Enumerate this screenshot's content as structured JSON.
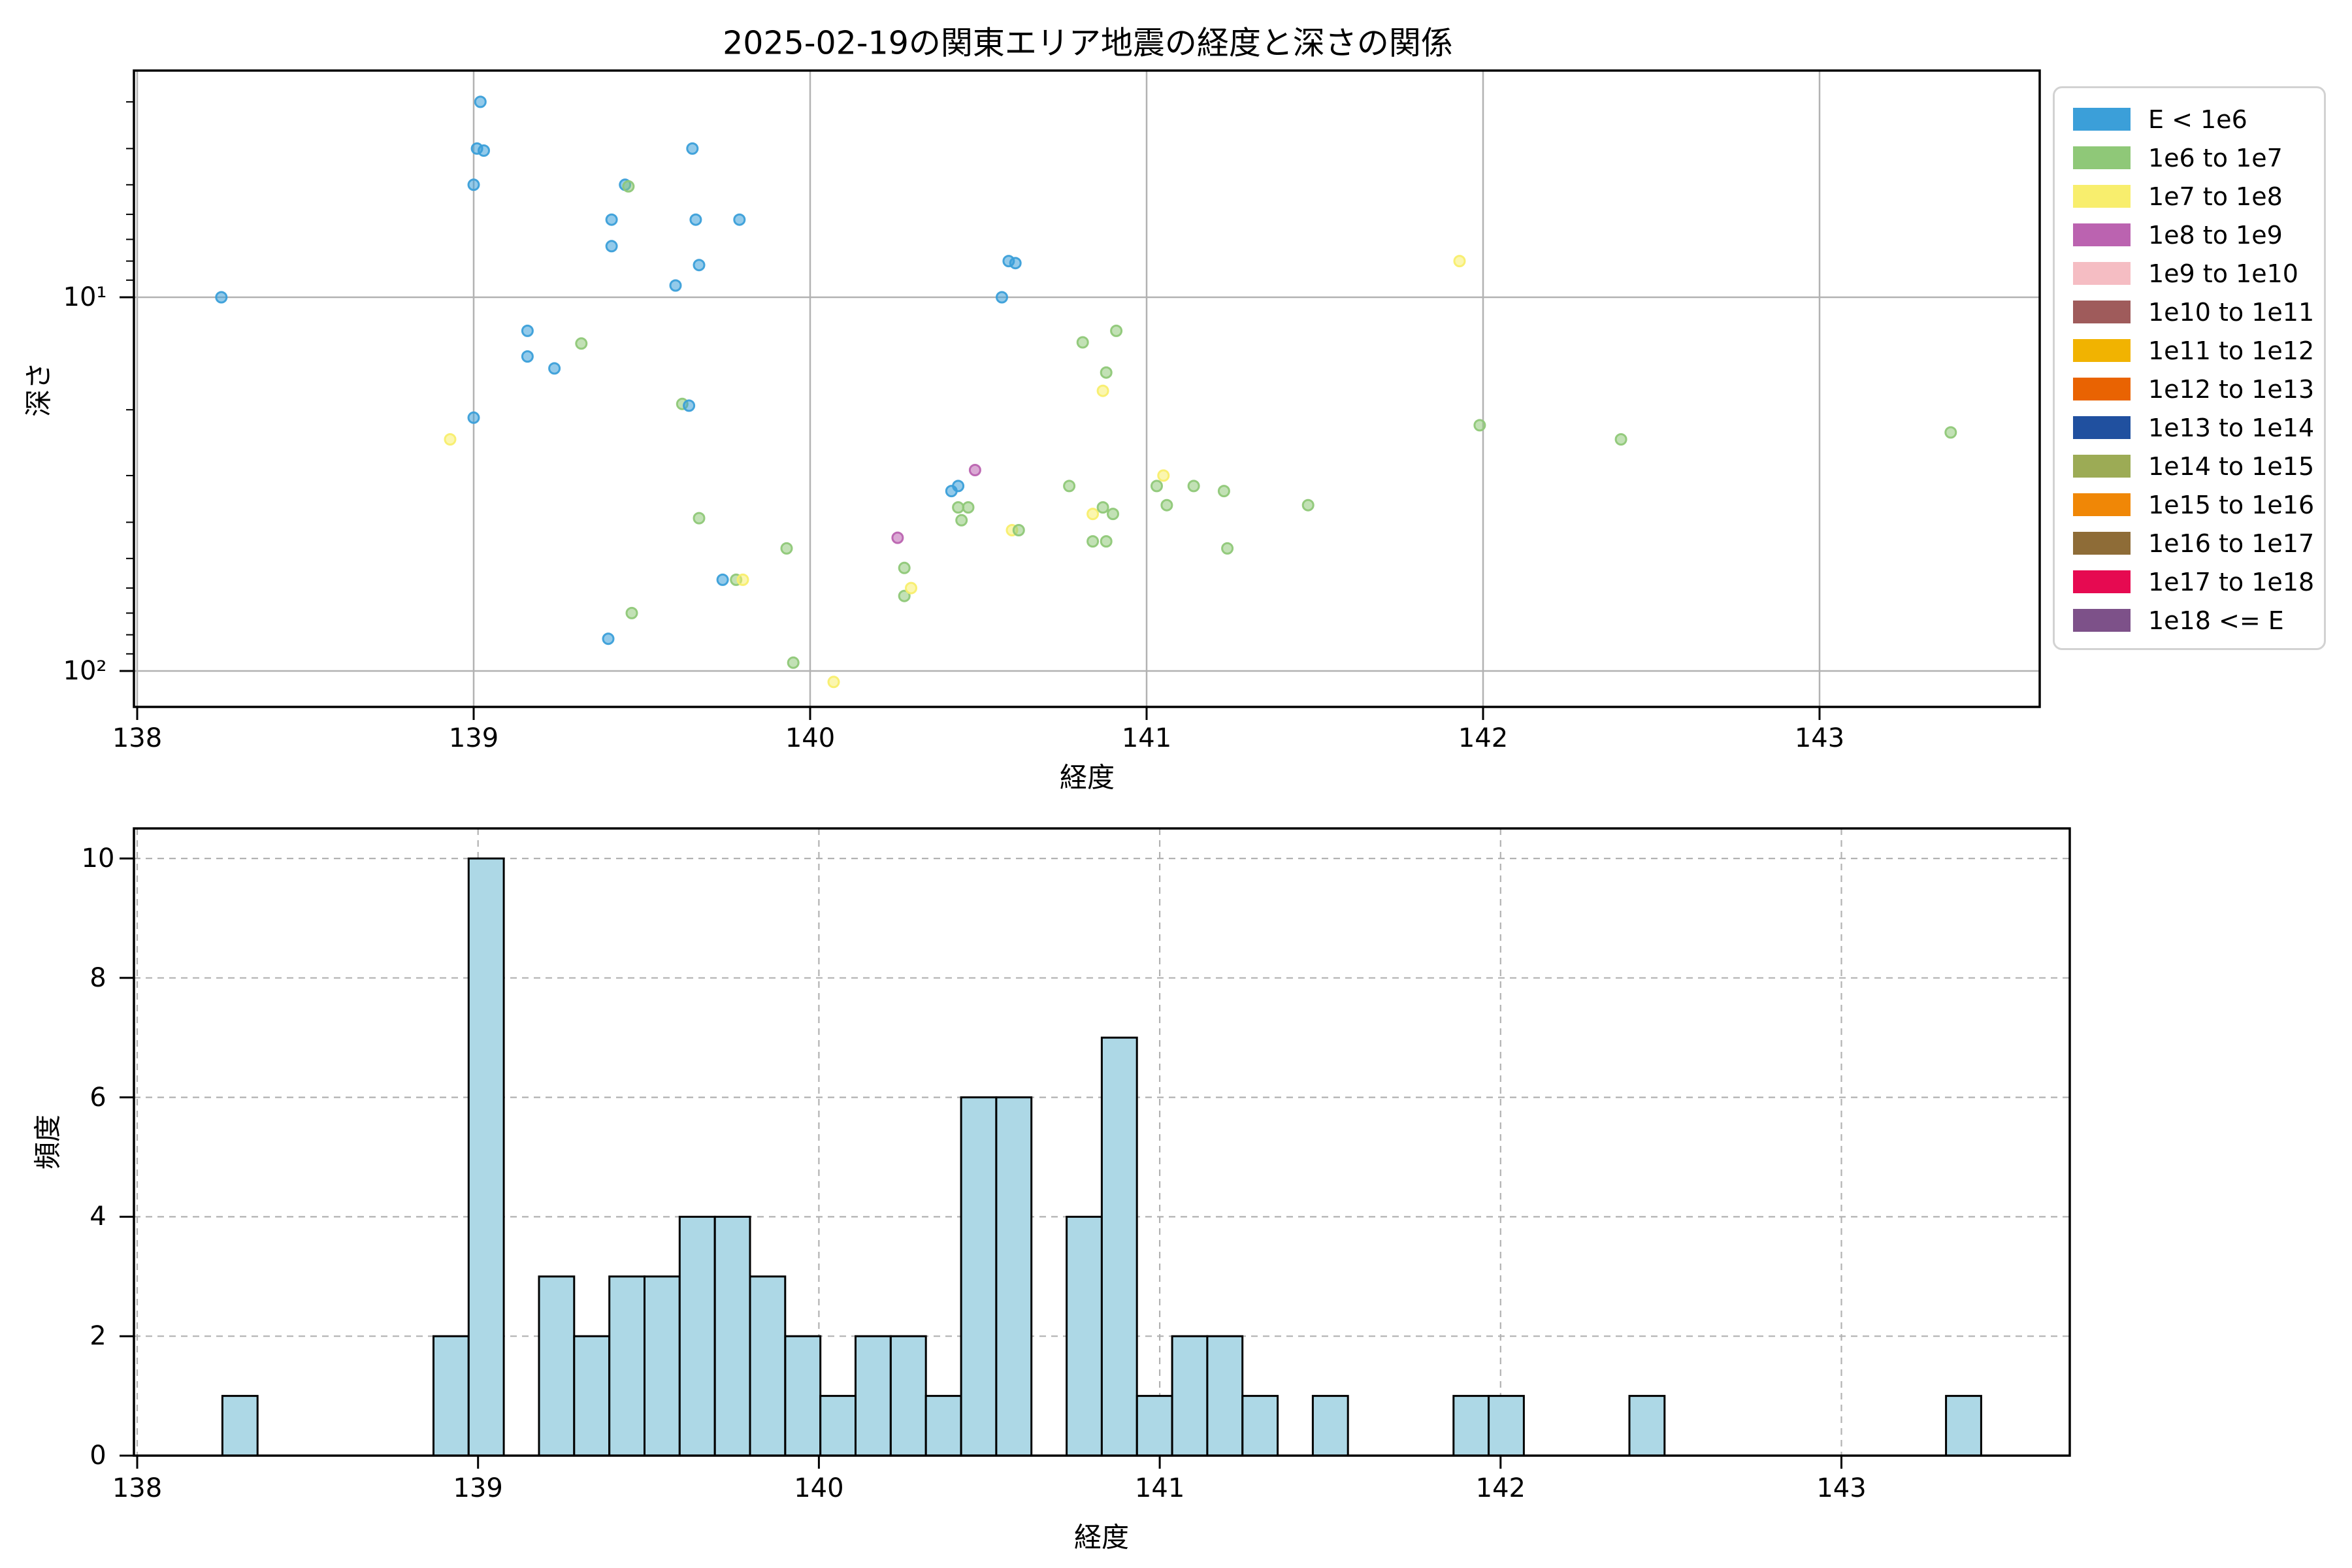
{
  "title": "2025-02-19の関東エリア地震の経度と深さの関係",
  "legend": {
    "items": [
      {
        "label": "E < 1e6",
        "color": "#3b9fd9"
      },
      {
        "label": "1e6 to 1e7",
        "color": "#8fc878"
      },
      {
        "label": "1e7 to 1e8",
        "color": "#f8ee6d"
      },
      {
        "label": "1e8 to 1e9",
        "color": "#bb63b0"
      },
      {
        "label": "1e9 to 1e10",
        "color": "#f5bdc3"
      },
      {
        "label": "1e10 to 1e11",
        "color": "#9f5b5b"
      },
      {
        "label": "1e11 to 1e12",
        "color": "#f1b301"
      },
      {
        "label": "1e12 to 1e13",
        "color": "#e96302"
      },
      {
        "label": "1e13 to 1e14",
        "color": "#20509f"
      },
      {
        "label": "1e14 to 1e15",
        "color": "#9cab55"
      },
      {
        "label": "1e15 to 1e16",
        "color": "#f08706"
      },
      {
        "label": "1e16 to 1e17",
        "color": "#8e6c37"
      },
      {
        "label": "1e17 to 1e18",
        "color": "#e60a51"
      },
      {
        "label": "1e18 <= E",
        "color": "#7d5189"
      }
    ]
  },
  "chart_data": [
    {
      "type": "scatter",
      "title": "2025-02-19の関東エリア地震の経度と深さの関係",
      "xlabel": "経度",
      "ylabel": "深さ",
      "xlim": [
        137.99,
        143.66
      ],
      "ylim": [
        2.5,
        126
      ],
      "yscale": "log",
      "y_inverted": true,
      "grid": "solid",
      "xticks": [
        138,
        139,
        140,
        141,
        142,
        143
      ],
      "yticks": [
        10,
        100
      ],
      "ytick_labels": [
        "10¹",
        "10²"
      ],
      "yminor": [
        3,
        4,
        5,
        6,
        7,
        8,
        9,
        20,
        30,
        40,
        50,
        60,
        70,
        80,
        90
      ],
      "legend_position": "upper right, outside axes",
      "points_format": "[longitude, depth_km, legend_category_index]",
      "points": [
        [
          138.25,
          10.0,
          0
        ],
        [
          139.02,
          3.0,
          0
        ],
        [
          139.01,
          4.0,
          0
        ],
        [
          139.03,
          4.05,
          0
        ],
        [
          139.0,
          5.0,
          0
        ],
        [
          139.65,
          4.0,
          0
        ],
        [
          139.45,
          5.0,
          0
        ],
        [
          139.46,
          5.05,
          1
        ],
        [
          139.41,
          6.2,
          0
        ],
        [
          139.66,
          6.2,
          0
        ],
        [
          139.79,
          6.2,
          0
        ],
        [
          139.41,
          7.3,
          0
        ],
        [
          139.67,
          8.2,
          0
        ],
        [
          139.6,
          9.3,
          0
        ],
        [
          139.16,
          12.3,
          0
        ],
        [
          139.32,
          13.3,
          1
        ],
        [
          139.16,
          14.4,
          0
        ],
        [
          139.24,
          15.5,
          0
        ],
        [
          139.62,
          19.3,
          1
        ],
        [
          139.64,
          19.5,
          0
        ],
        [
          139.0,
          21.0,
          0
        ],
        [
          138.93,
          24.0,
          2
        ],
        [
          139.67,
          39.0,
          1
        ],
        [
          139.93,
          47.0,
          1
        ],
        [
          139.74,
          57.0,
          0
        ],
        [
          139.78,
          57.0,
          1
        ],
        [
          139.8,
          57.0,
          2
        ],
        [
          139.47,
          70.0,
          1
        ],
        [
          139.4,
          82.0,
          0
        ],
        [
          139.95,
          95.0,
          1
        ],
        [
          140.07,
          107.0,
          2
        ],
        [
          140.26,
          44.0,
          3
        ],
        [
          140.28,
          53.0,
          1
        ],
        [
          140.28,
          63.0,
          1
        ],
        [
          140.3,
          60.0,
          2
        ],
        [
          140.59,
          8.0,
          0
        ],
        [
          140.61,
          8.1,
          0
        ],
        [
          140.57,
          10.0,
          0
        ],
        [
          140.91,
          12.3,
          1
        ],
        [
          140.81,
          13.2,
          1
        ],
        [
          140.88,
          15.9,
          1
        ],
        [
          140.87,
          17.8,
          2
        ],
        [
          140.49,
          29.0,
          3
        ],
        [
          140.42,
          33.0,
          0
        ],
        [
          140.44,
          32.0,
          0
        ],
        [
          140.44,
          36.5,
          1
        ],
        [
          140.47,
          36.5,
          1
        ],
        [
          140.45,
          39.5,
          1
        ],
        [
          140.77,
          32.0,
          1
        ],
        [
          140.6,
          42.0,
          2
        ],
        [
          140.62,
          42.0,
          1
        ],
        [
          140.84,
          38.0,
          2
        ],
        [
          140.87,
          36.5,
          1
        ],
        [
          140.9,
          38.0,
          1
        ],
        [
          140.84,
          45.0,
          1
        ],
        [
          140.88,
          45.0,
          1
        ],
        [
          141.05,
          30.0,
          2
        ],
        [
          141.03,
          32.0,
          1
        ],
        [
          141.14,
          32.0,
          1
        ],
        [
          141.23,
          33.0,
          1
        ],
        [
          141.06,
          36.0,
          1
        ],
        [
          141.24,
          47.0,
          1
        ],
        [
          141.48,
          36.0,
          1
        ],
        [
          141.93,
          8.0,
          2
        ],
        [
          141.99,
          22.0,
          1
        ],
        [
          142.41,
          24.0,
          1
        ],
        [
          143.39,
          23.0,
          1
        ]
      ]
    },
    {
      "type": "histogram",
      "xlabel": "経度",
      "ylabel": "頻度",
      "xlim": [
        137.99,
        143.67
      ],
      "ylim": [
        0,
        10.5
      ],
      "grid": "dashed",
      "xticks": [
        138,
        139,
        140,
        141,
        142,
        143
      ],
      "yticks": [
        0,
        2,
        4,
        6,
        8,
        10
      ],
      "bar_fill": "#add8e6",
      "bar_edge": "#000000",
      "bin_start": 138.25,
      "bin_width": 0.1032,
      "counts": [
        1,
        0,
        0,
        0,
        0,
        0,
        2,
        10,
        0,
        3,
        2,
        3,
        3,
        4,
        4,
        3,
        2,
        1,
        2,
        2,
        1,
        6,
        6,
        0,
        4,
        7,
        1,
        2,
        2,
        1,
        0,
        1,
        0,
        0,
        0,
        1,
        1,
        0,
        0,
        0,
        1,
        0,
        0,
        0,
        0,
        0,
        0,
        0,
        0,
        1
      ]
    }
  ]
}
